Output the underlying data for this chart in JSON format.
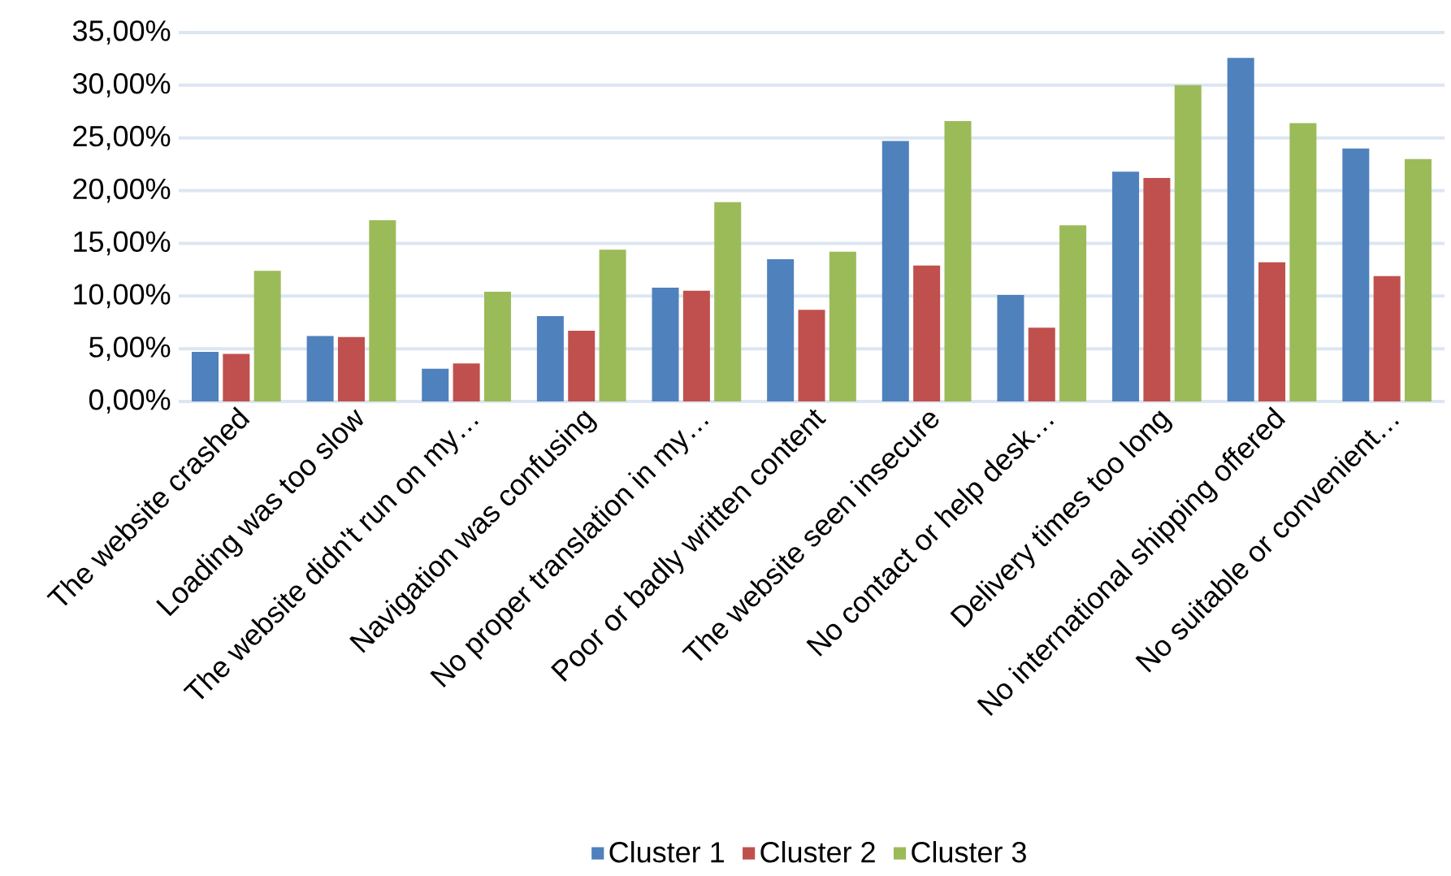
{
  "chart_data": {
    "type": "bar",
    "categories": [
      "The website crashed",
      "Loading was too slow",
      "The website didn't run on my…",
      "Navigation was confusing",
      "No proper translation in my…",
      "Poor or badly written content",
      "The website seen insecure",
      "No contact or help desk…",
      "Delivery times too long",
      "No international shipping offered",
      "No suitable or convenient…"
    ],
    "series": [
      {
        "name": "Cluster 1",
        "color": "#4f81bd",
        "values": [
          4.7,
          6.2,
          3.1,
          8.1,
          10.8,
          13.5,
          24.7,
          10.1,
          21.8,
          32.6,
          24.0
        ]
      },
      {
        "name": "Cluster 2",
        "color": "#c0504d",
        "values": [
          4.5,
          6.1,
          3.6,
          6.7,
          10.5,
          8.7,
          12.9,
          7.0,
          21.2,
          13.2,
          11.9
        ]
      },
      {
        "name": "Cluster 3",
        "color": "#9bbb59",
        "values": [
          12.4,
          17.2,
          10.4,
          14.4,
          18.9,
          14.2,
          26.6,
          16.7,
          30.0,
          26.4,
          23.0
        ]
      }
    ],
    "ylim": [
      0,
      35
    ],
    "yticks": [
      {
        "value": 0,
        "label": "0,00%"
      },
      {
        "value": 5,
        "label": "5,00%"
      },
      {
        "value": 10,
        "label": "10,00%"
      },
      {
        "value": 15,
        "label": "15,00%"
      },
      {
        "value": 20,
        "label": "20,00%"
      },
      {
        "value": 25,
        "label": "25,00%"
      },
      {
        "value": 30,
        "label": "30,00%"
      },
      {
        "value": 35,
        "label": "35,00%"
      }
    ],
    "grid": "y",
    "legend": "bottom"
  }
}
